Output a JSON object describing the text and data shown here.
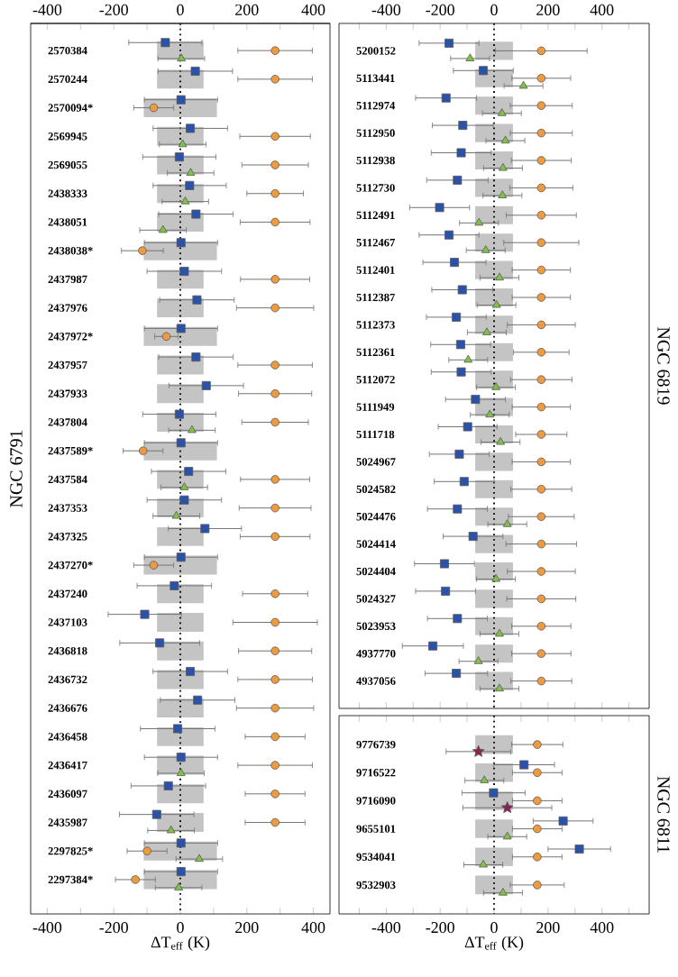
{
  "chart_data": [
    {
      "type": "scatter",
      "orientation": "horizontal",
      "title": "NGC 6791",
      "xlabel": "ΔT$_{eff}$ (K)",
      "categories": [
        "2570384",
        "2570244",
        "2570094*",
        "2569945",
        "2569055",
        "2438333",
        "2438051",
        "2438038*",
        "2437987",
        "2437976",
        "2437972*",
        "2437957",
        "2437933",
        "2437804",
        "2437589*",
        "2437584",
        "2437353",
        "2437325",
        "2437270*",
        "2437240",
        "2437103",
        "2436818",
        "2436732",
        "2436676",
        "2436458",
        "2436417",
        "2436097",
        "2435987",
        "2297825*",
        "2297384*"
      ],
      "xlim": [
        -450,
        450
      ],
      "xticks": [
        -400,
        {
          "value": -300,
          "label": null
        },
        -200,
        {
          "value": -100,
          "label": null
        },
        0,
        {
          "value": 100,
          "label": null
        },
        200,
        {
          "value": 300,
          "label": null
        },
        400
      ],
      "x2lim": [
        -450,
        450
      ],
      "x2ticks": [
        -400,
        {
          "value": -300,
          "label": null
        },
        -200,
        {
          "value": -100,
          "label": null
        },
        0,
        {
          "value": 100,
          "label": null
        },
        200,
        {
          "value": 300,
          "label": null
        },
        400
      ],
      "ref_lines": [
        {
          "axis": "x",
          "value": 0,
          "line_style": "dotted",
          "color": "#000000"
        }
      ],
      "series": [
        {
          "type": "bar",
          "color": "#c4c4c4",
          "base": [
            -70,
            -70,
            -110,
            -70,
            -70,
            -70,
            -70,
            -110,
            -70,
            -70,
            -110,
            -70,
            -70,
            -70,
            -110,
            -70,
            -70,
            -70,
            -110,
            -70,
            -70,
            -70,
            -70,
            -70,
            -70,
            -70,
            -70,
            -70,
            -110,
            -110
          ],
          "values": [
            140,
            140,
            220,
            140,
            140,
            140,
            140,
            220,
            140,
            140,
            220,
            140,
            140,
            140,
            220,
            140,
            140,
            140,
            220,
            140,
            140,
            140,
            140,
            140,
            140,
            140,
            140,
            140,
            220,
            220
          ]
        },
        {
          "color": "#2a52a8",
          "marker": "square",
          "values": [
            -45,
            45,
            2,
            30,
            -3,
            28,
            47,
            2,
            12,
            50,
            2,
            47,
            78,
            -3,
            2,
            25,
            12,
            74,
            2,
            -18,
            -107,
            -62,
            30,
            52,
            -8,
            2,
            -36,
            -71,
            2,
            2
          ],
          "errors": [
            110,
            112,
            110,
            112,
            110,
            110,
            112,
            110,
            112,
            112,
            110,
            112,
            112,
            110,
            110,
            112,
            112,
            110,
            110,
            112,
            110,
            120,
            112,
            112,
            112,
            110,
            112,
            112,
            110,
            110
          ]
        },
        {
          "color": "#80c342",
          "marker": "triangle",
          "values": [
            3,
            null,
            null,
            7,
            31,
            15,
            -52,
            null,
            null,
            null,
            null,
            null,
            null,
            35,
            null,
            12,
            -12,
            null,
            null,
            null,
            null,
            null,
            null,
            null,
            null,
            2,
            null,
            -28,
            57,
            -5
          ],
          "errors": [
            70,
            null,
            null,
            70,
            70,
            70,
            70,
            null,
            null,
            null,
            null,
            null,
            null,
            70,
            null,
            70,
            70,
            null,
            null,
            null,
            null,
            null,
            null,
            null,
            null,
            70,
            null,
            70,
            70,
            70
          ]
        },
        {
          "color": "#f09a3e",
          "marker": "circle",
          "values": [
            285,
            285,
            -80,
            285,
            285,
            285,
            285,
            -114,
            285,
            285,
            -42,
            285,
            285,
            285,
            -112,
            285,
            285,
            285,
            -80,
            285,
            285,
            285,
            285,
            285,
            285,
            285,
            285,
            285,
            -100,
            -135
          ],
          "errors": [
            112,
            112,
            60,
            106,
            100,
            85,
            105,
            63,
            104,
            116,
            35,
            112,
            110,
            100,
            60,
            104,
            108,
            105,
            60,
            98,
            127,
            110,
            112,
            116,
            90,
            112,
            90,
            90,
            60,
            60
          ]
        }
      ]
    },
    {
      "type": "scatter",
      "orientation": "horizontal",
      "title": "NGC 6819",
      "categories": [
        "5200152",
        "5113441",
        "5112974",
        "5112950",
        "5112938",
        "5112730",
        "5112491",
        "5112467",
        "5112401",
        "5112387",
        "5112373",
        "5112361",
        "5112072",
        "5111949",
        "5111718",
        "5024967",
        "5024582",
        "5024476",
        "5024414",
        "5024404",
        "5024327",
        "5023953",
        "4937770",
        "4937056"
      ],
      "xlim": [
        -575,
        575
      ],
      "xticks": [
        {
          "value": -500,
          "label": null
        },
        -400,
        {
          "value": -300,
          "label": null
        },
        -200,
        {
          "value": -100,
          "label": null
        },
        0,
        {
          "value": 100,
          "label": null
        },
        200,
        {
          "value": 300,
          "label": null
        },
        400,
        {
          "value": 500,
          "label": null
        }
      ],
      "ref_lines": [
        {
          "axis": "x",
          "value": 0,
          "line_style": "dotted",
          "color": "#000000"
        }
      ],
      "series": [
        {
          "type": "bar",
          "color": "#c4c4c4",
          "base": [
            -70,
            -70,
            -70,
            -70,
            -70,
            -70,
            -70,
            -70,
            -70,
            -70,
            -70,
            -70,
            -70,
            -70,
            -70,
            -70,
            -70,
            -70,
            -70,
            -70,
            -70,
            -70,
            -70,
            -70
          ],
          "values": [
            140,
            140,
            140,
            140,
            140,
            140,
            140,
            140,
            140,
            140,
            140,
            140,
            140,
            140,
            140,
            140,
            140,
            140,
            140,
            140,
            140,
            140,
            140,
            140
          ]
        },
        {
          "color": "#2a52a8",
          "marker": "square",
          "values": [
            -167,
            -40,
            -178,
            -116,
            -122,
            -136,
            -202,
            -167,
            -147,
            -118,
            -140,
            -124,
            -122,
            -69,
            -98,
            -129,
            -111,
            -136,
            -78,
            -184,
            -180,
            -136,
            -227,
            -140
          ],
          "errors": [
            111,
            111,
            113,
            113,
            111,
            114,
            111,
            111,
            117,
            113,
            111,
            111,
            111,
            111,
            109,
            111,
            111,
            111,
            111,
            111,
            111,
            111,
            113,
            116
          ]
        },
        {
          "color": "#80c342",
          "marker": "triangle",
          "values": [
            -89,
            109,
            29,
            42,
            33,
            31,
            -56,
            -31,
            20,
            9,
            -27,
            -96,
            7,
            -16,
            24,
            null,
            null,
            49,
            null,
            7,
            null,
            20,
            -58,
            20
          ],
          "errors": [
            72,
            72,
            72,
            72,
            72,
            72,
            72,
            72,
            72,
            72,
            72,
            72,
            72,
            72,
            72,
            null,
            null,
            72,
            null,
            72,
            null,
            72,
            72,
            72
          ]
        },
        {
          "color": "#f09a3e",
          "marker": "circle",
          "values": [
            175,
            175,
            175,
            175,
            175,
            175,
            175,
            175,
            175,
            175,
            175,
            175,
            175,
            175,
            175,
            175,
            175,
            175,
            175,
            175,
            175,
            175,
            175,
            175
          ],
          "errors": [
            170,
            109,
            115,
            115,
            111,
            117,
            130,
            139,
            108,
            108,
            126,
            103,
            114,
            108,
            95,
            108,
            113,
            122,
            131,
            126,
            128,
            110,
            110,
            113
          ]
        }
      ]
    },
    {
      "type": "scatter",
      "orientation": "horizontal",
      "title": "NGC 6811",
      "xlabel": "ΔT$_{eff}$ (K)",
      "categories": [
        "9776739",
        "9716522",
        "9716090",
        "9655101",
        "9534041",
        "9532903"
      ],
      "xlim": [
        -575,
        575
      ],
      "xticks": [
        {
          "value": -500,
          "label": null
        },
        -400,
        {
          "value": -300,
          "label": null
        },
        -200,
        {
          "value": -100,
          "label": null
        },
        0,
        {
          "value": 100,
          "label": null
        },
        200,
        {
          "value": 300,
          "label": null
        },
        400,
        {
          "value": 500,
          "label": null
        }
      ],
      "ref_lines": [
        {
          "axis": "x",
          "value": 0,
          "line_style": "dotted",
          "color": "#000000"
        }
      ],
      "series": [
        {
          "type": "bar",
          "color": "#c4c4c4",
          "base": [
            -70,
            -70,
            -70,
            -70,
            -70,
            -70
          ],
          "values": [
            140,
            140,
            140,
            140,
            140,
            140
          ]
        },
        {
          "color": "#2a52a8",
          "marker": "square",
          "values": [
            null,
            111,
            -2,
            256,
            316,
            null
          ],
          "errors": [
            null,
            113,
            117,
            111,
            116,
            null
          ]
        },
        {
          "color": "#80c342",
          "marker": "triangle",
          "values": [
            null,
            -36,
            null,
            49,
            -40,
            33
          ],
          "errors": [
            null,
            72,
            null,
            72,
            72,
            72
          ]
        },
        {
          "color": "#8b2350",
          "marker": "star",
          "values": [
            -58,
            null,
            49,
            null,
            null,
            null
          ],
          "errors": [
            120,
            null,
            165,
            null,
            null,
            null
          ]
        },
        {
          "color": "#f09a3e",
          "marker": "circle",
          "values": [
            160,
            160,
            160,
            160,
            160,
            160
          ],
          "errors": [
            95,
            92,
            92,
            92,
            92,
            100
          ]
        }
      ]
    }
  ]
}
